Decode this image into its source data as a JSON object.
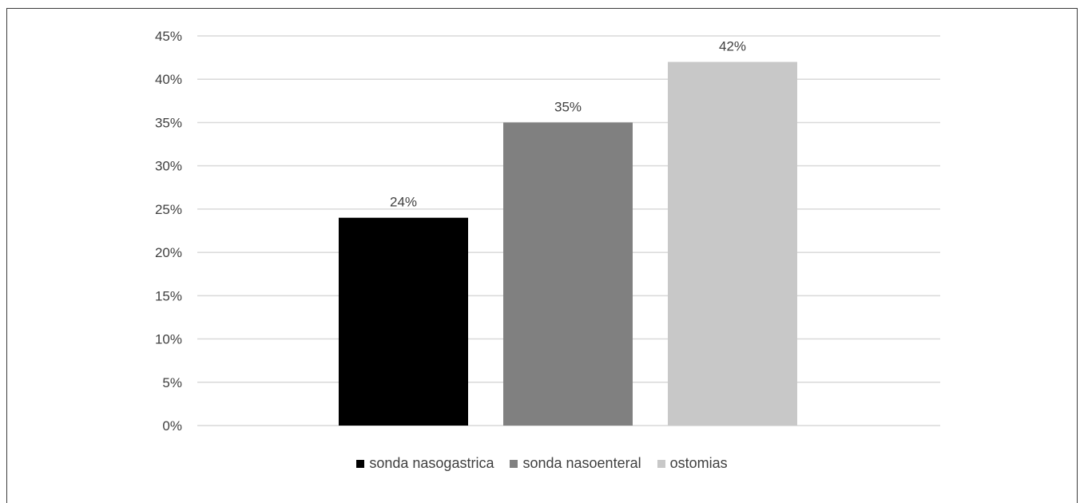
{
  "chart_data": {
    "type": "bar",
    "categories": [
      "sonda nasogastrica",
      "sonda nasoenteral",
      "ostomias"
    ],
    "values": [
      24,
      35,
      42
    ],
    "data_labels": [
      "24%",
      "35%",
      "42%"
    ],
    "colors": [
      "#000000",
      "#808080",
      "#c8c8c8"
    ],
    "ylim": [
      0,
      45
    ],
    "yticks": [
      "0%",
      "5%",
      "10%",
      "15%",
      "20%",
      "25%",
      "30%",
      "35%",
      "40%",
      "45%"
    ],
    "ytick_values": [
      0,
      5,
      10,
      15,
      20,
      25,
      30,
      35,
      40,
      45
    ],
    "grid": true,
    "legend_position": "bottom",
    "title": "",
    "xlabel": "",
    "ylabel": ""
  }
}
